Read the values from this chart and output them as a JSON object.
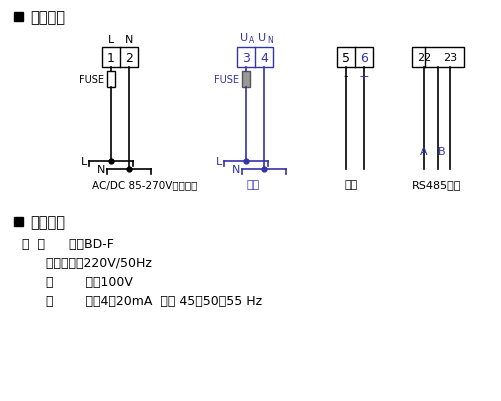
{
  "bg_color": "#ffffff",
  "line_color": "#000000",
  "text_color": "#000000",
  "blue_color": "#3333aa",
  "title1": "接线方式",
  "title2": "订货范例",
  "fuse1_label": "FUSE",
  "fuse2_label": "FUSE",
  "label_power": "AC/DC 85-270V辅助电源",
  "label_input": "输入",
  "label_output": "输出",
  "label_rs485": "RS485通讯",
  "label_minus": "-",
  "label_plus": "+",
  "label_A": "A",
  "label_B": "B",
  "order_line1": "例  型      号：BD-F",
  "order_line2": "      辅助电源：220V/50Hz",
  "order_line3": "      输        入：100V",
  "order_line4": "      输        出：4～20mA  对应 45～50～55 Hz"
}
